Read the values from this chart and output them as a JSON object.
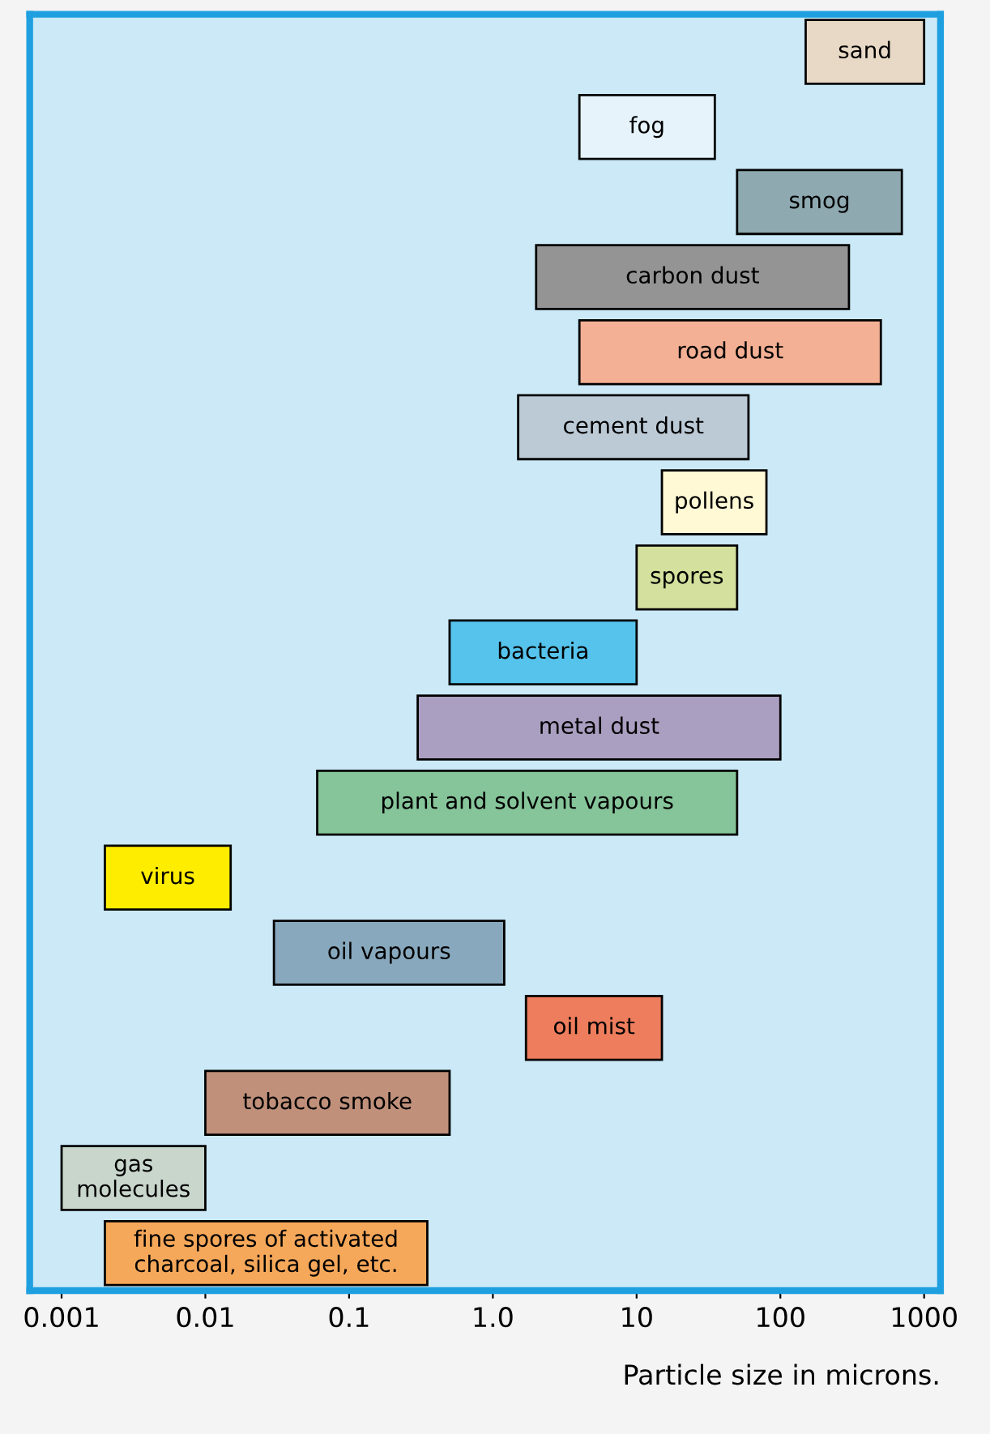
{
  "chart_data": {
    "type": "bar",
    "orientation": "horizontal",
    "log": "x",
    "tick_labels": "x",
    "xlabel": "Particle size in microns.",
    "categories": [
      "sand",
      "fog",
      "smog",
      "carbon dust",
      "road dust",
      "cement dust",
      "pollens",
      "spores",
      "bacteria",
      "metal dust",
      "plant and solvent vapours",
      "virus",
      "oil vapours",
      "oil mist",
      "tobacco smoke",
      "gas\nmolecules",
      "fine spores of activated\ncharcoal, silica gel, etc."
    ],
    "base": [
      150,
      4,
      50,
      2,
      4,
      1.5,
      15,
      10,
      0.5,
      0.3,
      0.06,
      0.002,
      0.03,
      1.7,
      0.01,
      0.001,
      0.002
    ],
    "values": [
      850,
      31,
      650,
      298,
      496,
      58.5,
      65,
      40,
      9.5,
      99.7,
      49.94,
      0.013,
      1.17,
      13.3,
      0.49,
      0.009,
      0.348
    ],
    "colors": [
      "#e8d9c6",
      "#e6f3fb",
      "#8ea9b0",
      "#949494",
      "#f4b094",
      "#bccad6",
      "#fff9d5",
      "#d4e19e",
      "#55c3ec",
      "#ab9fc1",
      "#86c49a",
      "#ffed00",
      "#88a8bd",
      "#ed7d5c",
      "#c0907a",
      "#c8d6cc",
      "#f6a85a"
    ],
    "xlim": [
      0.0006,
      1300
    ],
    "xticks": [
      0.001,
      0.01,
      0.1,
      {
        "value": 1,
        "label": "1.0"
      },
      10,
      100,
      1000
    ]
  }
}
